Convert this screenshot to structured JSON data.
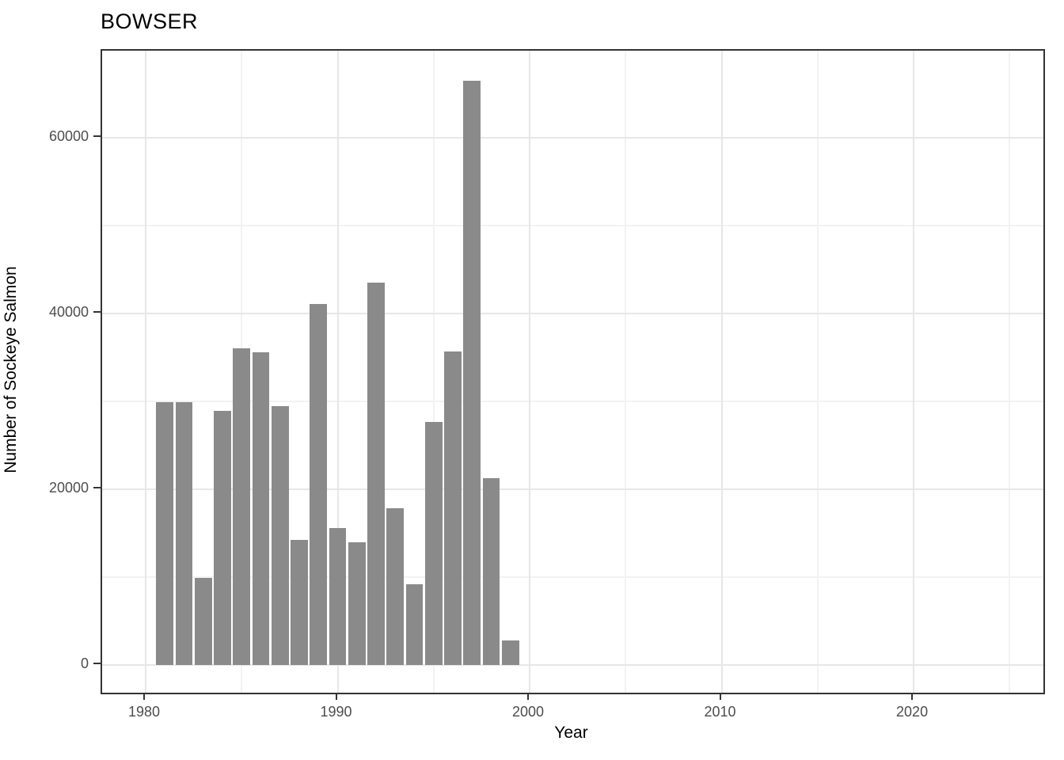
{
  "title": "BOWSER",
  "chart_data": {
    "type": "bar",
    "title": "BOWSER",
    "xlabel": "Year",
    "ylabel": "Number of Sockeye Salmon",
    "x": [
      1981,
      1982,
      1983,
      1984,
      1985,
      1986,
      1987,
      1988,
      1989,
      1990,
      1991,
      1992,
      1993,
      1994,
      1995,
      1996,
      1997,
      1998,
      1999
    ],
    "values": [
      29900,
      29900,
      9900,
      28900,
      36000,
      35600,
      29500,
      14200,
      41100,
      15600,
      14000,
      43500,
      17800,
      9200,
      27700,
      35700,
      66500,
      21300,
      2800
    ],
    "bar_width_years": 0.9,
    "bar_color": "#8a8a8a",
    "xlim": [
      1977.73,
      2026.76
    ],
    "ylim": [
      -3150,
      69900
    ],
    "x_major_ticks": [
      1980,
      1990,
      2000,
      2010,
      2020
    ],
    "x_minor_ticks": [
      1985,
      1995,
      2005,
      2015,
      2025
    ],
    "y_major_ticks": [
      0,
      20000,
      40000,
      60000
    ],
    "y_minor_ticks": [
      10000,
      30000,
      50000
    ],
    "grid": true,
    "legend_position": "none",
    "colors": {
      "bar": "#8a8a8a",
      "grid_major": "#e7e7e7",
      "grid_minor": "#f2f2f2",
      "panel_border": "#333333",
      "tick_label": "#4d4d4d",
      "axis_title": "#000000",
      "background": "#ffffff"
    }
  }
}
